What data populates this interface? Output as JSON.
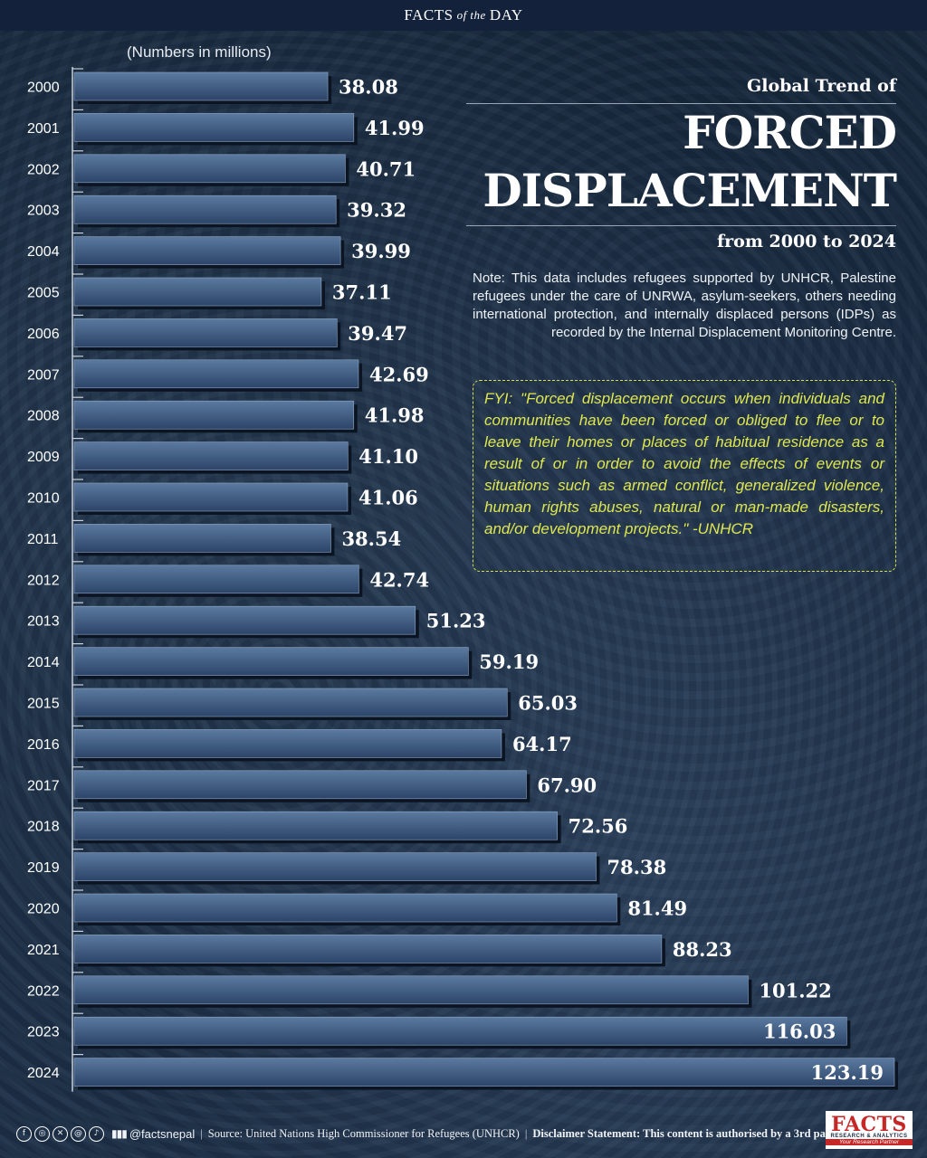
{
  "header": {
    "facts": "FACTS",
    "of_the": "of the",
    "day": "DAY"
  },
  "units_note": "(Numbers in millions)",
  "title": {
    "small": "Global Trend of",
    "big_line1": "FORCED",
    "big_line2": "DISPLACEMENT",
    "sub": "from 2000 to 2024"
  },
  "note": "Note: This data includes refugees supported by UNHCR, Palestine refugees under the care of UNRWA, asylum-seekers, others needing international protection, and internally displaced persons (IDPs) as recorded by the Internal Displacement Monitoring Centre.",
  "fyi": "FYI: \"Forced displacement occurs when individuals and communities have been forced or obliged to flee or to leave their homes or places of habitual residence as a result of or in order to avoid the effects of events or situations such as armed conflict, generalized violence, human rights abuses, natural or man-made disasters, and/or development projects.\" -UNHCR",
  "footer": {
    "social_icons": [
      "facebook-icon",
      "instagram-icon",
      "x-icon",
      "threads-icon",
      "tiktok-icon"
    ],
    "handle": "@factsnepal",
    "source": "Source: United Nations High Commissioner for Refugees (UNHCR)",
    "disclaimer": "Disclaimer Statement: This content is authorised by a 3rd party."
  },
  "logo": {
    "main": "FACTS",
    "sub": "RESEARCH & ANALYTICS",
    "tag": "Your Research Partner"
  },
  "colors": {
    "bar_fill_top": "#5b7aa0",
    "bar_fill_bottom": "#2c4468",
    "bar_shadow": "#0b1422",
    "fyi_text": "#dfe74e",
    "logo_red": "#c62828"
  },
  "chart_data": {
    "type": "bar",
    "orientation": "horizontal",
    "categories": [
      "2000",
      "2001",
      "2002",
      "2003",
      "2004",
      "2005",
      "2006",
      "2007",
      "2008",
      "2009",
      "2010",
      "2011",
      "2012",
      "2013",
      "2014",
      "2015",
      "2016",
      "2017",
      "2018",
      "2019",
      "2020",
      "2021",
      "2022",
      "2023",
      "2024"
    ],
    "values": [
      38.08,
      41.99,
      40.71,
      39.32,
      39.99,
      37.11,
      39.47,
      42.69,
      41.98,
      41.1,
      41.06,
      38.54,
      42.74,
      51.23,
      59.19,
      65.03,
      64.17,
      67.9,
      72.56,
      78.38,
      81.49,
      88.23,
      101.22,
      116.03,
      123.19
    ],
    "value_labels": [
      "38.08",
      "41.99",
      "40.71",
      "39.32",
      "39.99",
      "37.11",
      "39.47",
      "42.69",
      "41.98",
      "41.10",
      "41.06",
      "38.54",
      "42.74",
      "51.23",
      "59.19",
      "65.03",
      "64.17",
      "67.90",
      "72.56",
      "78.38",
      "81.49",
      "88.23",
      "101.22",
      "116.03",
      "123.19"
    ],
    "title": "Global Trend of FORCED DISPLACEMENT from 2000 to 2024",
    "xlabel": "",
    "ylabel": "",
    "unit": "(Numbers in millions)",
    "xlim": [
      0,
      123.19
    ],
    "grid": false,
    "legend": "none"
  }
}
